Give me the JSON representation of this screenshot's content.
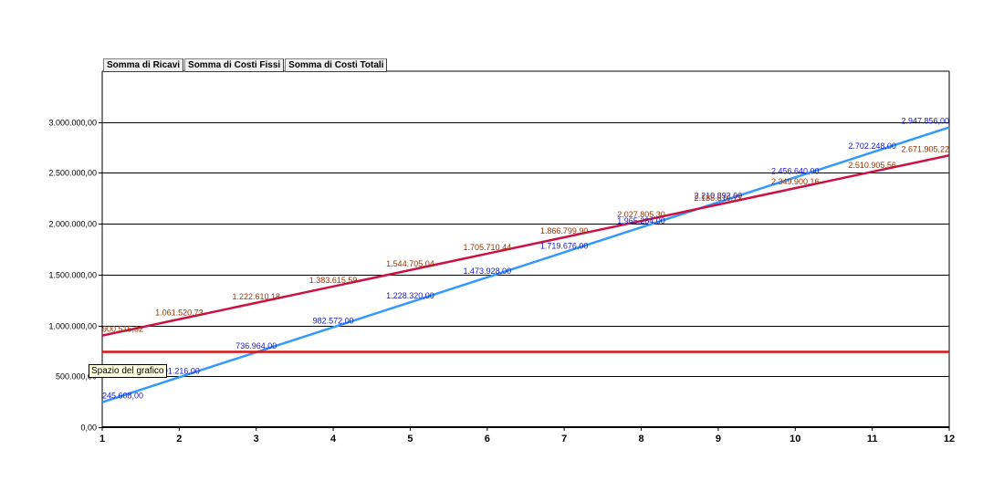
{
  "field_buttons": [
    {
      "label": "Somma di Ricavi"
    },
    {
      "label": "Somma di Costi Fissi"
    },
    {
      "label": "Somma di Costi Totali"
    }
  ],
  "tooltip": "Spazio del grafico",
  "colors": {
    "ricavi": "#3399ff",
    "costi_fissi": "#dd1111",
    "costi_totali": "#cc1144",
    "ricavi_label": "#1a1acc",
    "costi_totali_label": "#993300",
    "grid": "#000000"
  },
  "chart_data": {
    "type": "line",
    "title": "",
    "xlabel": "",
    "ylabel": "",
    "x": [
      1,
      2,
      3,
      4,
      5,
      6,
      7,
      8,
      9,
      10,
      11,
      12
    ],
    "ylim": [
      0,
      3500000
    ],
    "yticks": [
      0,
      500000,
      1000000,
      1500000,
      2000000,
      2500000,
      3000000
    ],
    "ytick_labels": [
      "0,00",
      "500.000,00",
      "1.000.000,00",
      "1.500.000,00",
      "2.000.000,00",
      "2.500.000,00",
      "3.000.000,00"
    ],
    "grid": true,
    "series": [
      {
        "name": "Somma di Ricavi",
        "values": [
          245608,
          491216,
          736964,
          982572,
          1228320,
          1473928,
          1719676,
          1965284,
          2210892,
          2456640,
          2702248,
          2947856
        ],
        "labels": [
          "245.608,00",
          "491.216,00",
          "736.964,00",
          "982.572,00",
          "1.228.320,00",
          "1.473.928,00",
          "1.719.676,00",
          "1.965.284,00",
          "2.210.892,00",
          "2.456.640,00",
          "2.702.248,00",
          "2.947.856,00"
        ]
      },
      {
        "name": "Somma di Costi Fissi",
        "values": [
          740000,
          740000,
          740000,
          740000,
          740000,
          740000,
          740000,
          740000,
          740000,
          740000,
          740000,
          740000
        ],
        "labels": []
      },
      {
        "name": "Somma di Costi Totali",
        "values": [
          900515.32,
          1061520.73,
          1222610.18,
          1383615.59,
          1544705.04,
          1705710.44,
          1866799.9,
          2027805.3,
          2188810.71,
          2349900.16,
          2510905.56,
          2671905.22
        ],
        "labels": [
          "900.515,32",
          "1.061.520,73",
          "1.222.610,18",
          "1.383.615,59",
          "1.544.705,04",
          "1.705.710,44",
          "1.866.799,90",
          "2.027.805,30",
          "2.188.810,71",
          "2.349.900,16",
          "2.510.905,56",
          "2.671.905,22"
        ]
      }
    ]
  }
}
